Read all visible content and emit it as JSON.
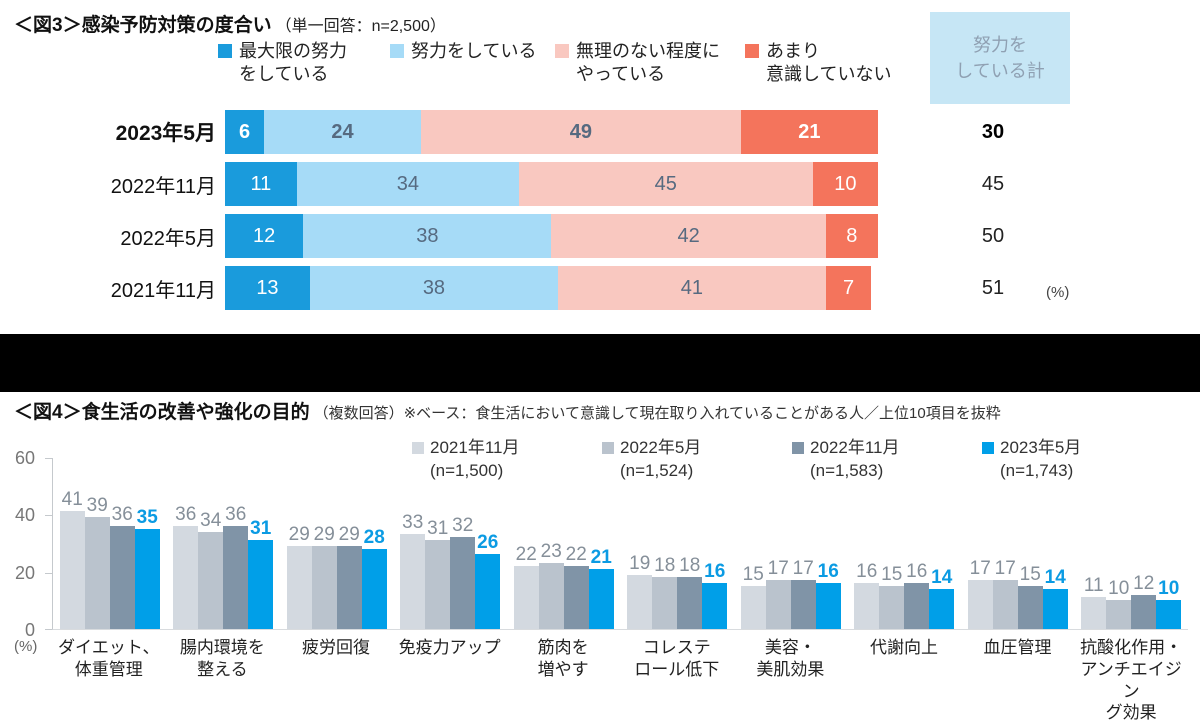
{
  "divider_color": "#000000",
  "chart_data": [
    {
      "id": "fig3",
      "type": "bar",
      "subtype": "horizontal-stacked",
      "title": "＜図3＞感染予防対策の度合い",
      "subtitle": "（単一回答：n=2,500）",
      "legend": [
        "最大限の努力\nをしている",
        "努力をしている",
        "無理のない程度に\nやっている",
        "あまり\n意識していない"
      ],
      "colors": [
        "#1A9BDC",
        "#A6DBF7",
        "#F9C8C0",
        "#F4745C"
      ],
      "segment_label_colors": [
        "#FFFFFF",
        "#566A80",
        "#566A80",
        "#FFFFFF"
      ],
      "categories": [
        "2023年5月",
        "2022年11月",
        "2022年5月",
        "2021年11月"
      ],
      "rows": [
        [
          6,
          24,
          49,
          21
        ],
        [
          11,
          34,
          45,
          10
        ],
        [
          12,
          38,
          42,
          8
        ],
        [
          13,
          38,
          41,
          7
        ]
      ],
      "totals": [
        30,
        45,
        50,
        51
      ],
      "total_header": "努力を\nしている計",
      "total_box_bg": "#C6E6F5",
      "highlight_row": 0,
      "unit": "(%)",
      "xlim": [
        0,
        100
      ],
      "legend_position": "top"
    },
    {
      "id": "fig4",
      "type": "bar",
      "subtype": "vertical-grouped",
      "title": "＜図4＞食生活の改善や強化の目的",
      "subtitle": "（複数回答）※ベース：食生活において意識して現在取り入れていることがある人／上位10項目を抜粋",
      "categories": [
        "ダイエット、\n体重管理",
        "腸内環境を\n整える",
        "疲労回復",
        "免疫力アップ",
        "筋肉を\n増やす",
        "コレステ\nロール低下",
        "美容・\n美肌効果",
        "代謝向上",
        "血圧管理",
        "抗酸化作用・\nアンチエイジン\nグ効果"
      ],
      "series": [
        {
          "name": "2021年11月\n(n=1,500)",
          "color": "#D3D9E0",
          "label_color": "#858F99",
          "bold": false,
          "values": [
            41,
            36,
            29,
            33,
            22,
            19,
            15,
            16,
            17,
            11
          ]
        },
        {
          "name": "2022年5月\n(n=1,524)",
          "color": "#BAC3CD",
          "label_color": "#858F99",
          "bold": false,
          "values": [
            39,
            34,
            29,
            31,
            23,
            18,
            17,
            15,
            17,
            10
          ]
        },
        {
          "name": "2022年11月\n(n=1,583)",
          "color": "#8094A7",
          "label_color": "#858F99",
          "bold": false,
          "values": [
            36,
            36,
            29,
            32,
            22,
            18,
            17,
            16,
            15,
            12
          ]
        },
        {
          "name": "2023年5月\n(n=1,743)",
          "color": "#009FE8",
          "label_color": "#0B9BE3",
          "bold": true,
          "values": [
            35,
            31,
            28,
            26,
            21,
            16,
            16,
            14,
            14,
            10
          ]
        }
      ],
      "yticks": [
        60,
        40,
        20,
        0
      ],
      "ylim": [
        0,
        60
      ],
      "unit": "(%)",
      "grid": false,
      "legend_position": "top"
    }
  ]
}
